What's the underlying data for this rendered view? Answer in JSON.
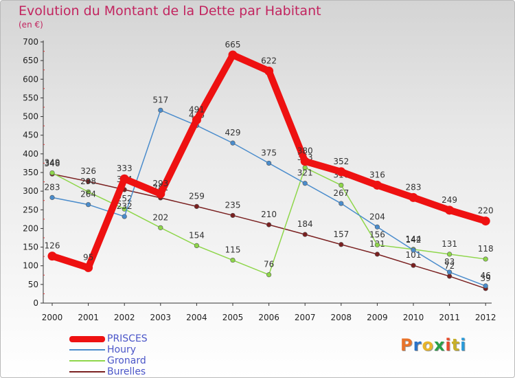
{
  "title": "Evolution du Montant de la Dette par Habitant",
  "subtitle": "(en €)",
  "brand": {
    "text": "Proxiti",
    "colors": [
      "#e8732a",
      "#2a73c8",
      "#e8b52a",
      "#2aa048",
      "#e84a2a",
      "#c8b02a",
      "#2a9ad8"
    ]
  },
  "chart_data": {
    "type": "line",
    "x": [
      "2000",
      "2001",
      "2002",
      "2003",
      "2004",
      "2005",
      "2006",
      "2007",
      "2008",
      "2009",
      "2010",
      "2011",
      "2012"
    ],
    "ylim": [
      0,
      700
    ],
    "yticks": [
      0,
      50,
      100,
      150,
      200,
      250,
      300,
      350,
      400,
      450,
      500,
      550,
      600,
      650,
      700
    ],
    "grid": false,
    "legend_position": "bottom-left",
    "series": [
      {
        "name": "PRISCES",
        "color": "#ee1111",
        "values": [
          126,
          95,
          333,
          293,
          491,
          665,
          622,
          380,
          352,
          316,
          283,
          249,
          220
        ]
      },
      {
        "name": "Houry",
        "color": "#4a8ccc",
        "values": [
          283,
          264,
          232,
          517,
          476,
          429,
          375,
          321,
          267,
          204,
          142,
          83,
          46
        ]
      },
      {
        "name": "Gronard",
        "color": "#8ed64a",
        "values": [
          349,
          298,
          252,
          202,
          154,
          115,
          76,
          363,
          316,
          156,
          144,
          131,
          118
        ]
      },
      {
        "name": "Burelles",
        "color": "#7a2020",
        "values": [
          346,
          326,
          304,
          282,
          259,
          235,
          210,
          184,
          157,
          131,
          101,
          72,
          39
        ]
      }
    ]
  }
}
